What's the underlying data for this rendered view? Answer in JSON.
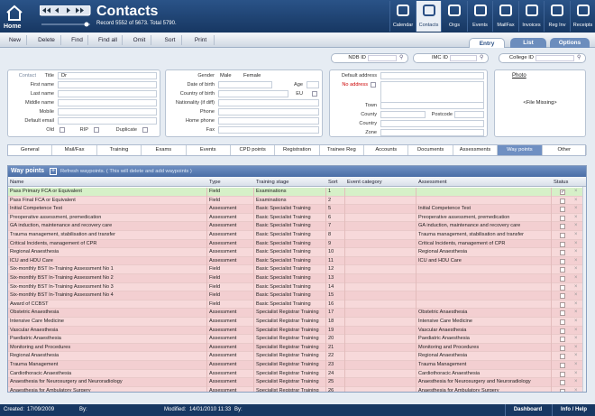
{
  "header": {
    "home": "Home",
    "title": "Contacts",
    "record": "Record 5552 of 5673. Total 5790.",
    "modules": [
      "Calendar",
      "Contacts",
      "Orgs",
      "Events",
      "MailFax",
      "Invoices",
      "Reg Inv",
      "Receipts"
    ]
  },
  "toolbar": {
    "buttons": [
      "New",
      "Delete",
      "Find",
      "Find all",
      "Omit",
      "Sort",
      "Print"
    ],
    "tabs": [
      "Entry",
      "List",
      "Options"
    ]
  },
  "search": [
    "NDB ID",
    "IMC ID",
    "College ID"
  ],
  "form": {
    "contact": "Contact",
    "title_label": "Title",
    "title_value": "Dr",
    "names": [
      "First name",
      "Last name",
      "Middle name",
      "Mobile",
      "Default email"
    ],
    "old": "Old",
    "rip": "RIP",
    "duplicate": "Duplicate",
    "gender": "Gender",
    "male": "Male",
    "female": "Female",
    "dob": "Date of birth",
    "age": "Age",
    "country_of_birth": "Country of birth",
    "eu": "EU",
    "nationality": "Nationality (if diff)",
    "phone": "Phone",
    "home_phone": "Home phone",
    "fax": "Fax",
    "default_address": "Default address",
    "no_address": "No address",
    "town": "Town",
    "county": "County",
    "postcode": "Postcode",
    "country": "Country",
    "zone": "Zone",
    "photo": "Photo",
    "file_missing": "<File Missing>"
  },
  "tabs": [
    "General",
    "Mail/Fax",
    "Training",
    "Exams",
    "Events",
    "CPD points",
    "Registration",
    "Trainee Reg",
    "Accounts",
    "Documents",
    "Assessments",
    "Way points",
    "Other"
  ],
  "waypoints": {
    "title": "Way points",
    "refresh": "Refresh waypoints. ( This will delete and add waypoints )",
    "columns": [
      "Name",
      "Type",
      "Training stage",
      "Sort",
      "Event category",
      "Assessment",
      "Status"
    ],
    "rows": [
      {
        "name": "Pass Primary FCA or Equivalent",
        "type": "Field",
        "stage": "Examinations",
        "sort": 1
      },
      {
        "name": "Pass Final FCA or Equivalent",
        "type": "Field",
        "stage": "Examinations",
        "sort": 2
      },
      {
        "name": "Initial Competence Test",
        "type": "Assessment",
        "stage": "Basic Specialist Training",
        "sort": 5,
        "assessment": "Initial Competence Test"
      },
      {
        "name": "Preoperative assessment, premedication",
        "type": "Assessment",
        "stage": "Basic Specialist Training",
        "sort": 6,
        "assessment": "Preoperative assessment, premedication"
      },
      {
        "name": "GA induction, maintenance and recovery care",
        "type": "Assessment",
        "stage": "Basic Specialist Training",
        "sort": 7,
        "assessment": "GA induction, maintenance and recovery care"
      },
      {
        "name": "Trauma management, stabilisation and transfer",
        "type": "Assessment",
        "stage": "Basic Specialist Training",
        "sort": 8,
        "assessment": "Trauma management, stabilisation and transfer"
      },
      {
        "name": "Critical Incidents, management of CPR",
        "type": "Assessment",
        "stage": "Basic Specialist Training",
        "sort": 9,
        "assessment": "Critical Incidents, management of CPR"
      },
      {
        "name": "Regional Anaesthesia",
        "type": "Assessment",
        "stage": "Basic Specialist Training",
        "sort": 10,
        "assessment": "Regional Anaesthesia"
      },
      {
        "name": "ICU and HDU Care",
        "type": "Assessment",
        "stage": "Basic Specialist Training",
        "sort": 11,
        "assessment": "ICU and HDU Care"
      },
      {
        "name": "Six-monthly BST In-Training Assessment No 1",
        "type": "Field",
        "stage": "Basic Specialist Training",
        "sort": 12
      },
      {
        "name": "Six-monthly BST In-Training Assessment No 2",
        "type": "Field",
        "stage": "Basic Specialist Training",
        "sort": 13
      },
      {
        "name": "Six-monthly BST In-Training Assessment No 3",
        "type": "Field",
        "stage": "Basic Specialist Training",
        "sort": 14
      },
      {
        "name": "Six-monthly BST In-Training Assessment No 4",
        "type": "Field",
        "stage": "Basic Specialist Training",
        "sort": 15
      },
      {
        "name": "Award of CCBST",
        "type": "Field",
        "stage": "Basic Specialist Training",
        "sort": 16
      },
      {
        "name": "Obstetric Anaesthesia",
        "type": "Assessment",
        "stage": "Specialist Registrar Training",
        "sort": 17,
        "assessment": "Obstetric Anaesthesia"
      },
      {
        "name": "Intensive Care Medicine",
        "type": "Assessment",
        "stage": "Specialist Registrar Training",
        "sort": 18,
        "assessment": "Intensive Care Medicine"
      },
      {
        "name": "Vascular Anaesthesia",
        "type": "Assessment",
        "stage": "Specialist Registrar Training",
        "sort": 19,
        "assessment": "Vascular Anaesthesia"
      },
      {
        "name": "Paediatric Anaesthesia",
        "type": "Assessment",
        "stage": "Specialist Registrar Training",
        "sort": 20,
        "assessment": "Paediatric Anaesthesia"
      },
      {
        "name": "Monitoring and Procedures",
        "type": "Assessment",
        "stage": "Specialist Registrar Training",
        "sort": 21,
        "assessment": "Monitoring and Procedures"
      },
      {
        "name": "Regional Anaesthesia",
        "type": "Assessment",
        "stage": "Specialist Registrar Training",
        "sort": 22,
        "assessment": "Regional Anaesthesia"
      },
      {
        "name": "Trauma Management",
        "type": "Assessment",
        "stage": "Specialist Registrar Training",
        "sort": 23,
        "assessment": "Trauma Management"
      },
      {
        "name": "Cardiothoracic Anaesthesia",
        "type": "Assessment",
        "stage": "Specialist Registrar Training",
        "sort": 24,
        "assessment": "Cardiothoracic Anaesthesia"
      },
      {
        "name": "Anaesthesia for Neurosurgery and Neuroradiology",
        "type": "Assessment",
        "stage": "Specialist Registrar Training",
        "sort": 25,
        "assessment": "Anaesthesia for Neurosurgery and Neuroradiology"
      },
      {
        "name": "Anaesthesia for Ambulatory Surgery",
        "type": "Assessment",
        "stage": "Specialist Registrar Training",
        "sort": 26,
        "assessment": "Anaesthesia for Ambulatory Surgery"
      }
    ]
  },
  "footer": {
    "created_label": "Created:",
    "created": "17/09/2009",
    "by": "By:",
    "modified_label": "Modified:",
    "modified": "14/01/2010  11:33",
    "by2": "By:",
    "dashboard": "Dashboard",
    "help": "Info / Help"
  }
}
